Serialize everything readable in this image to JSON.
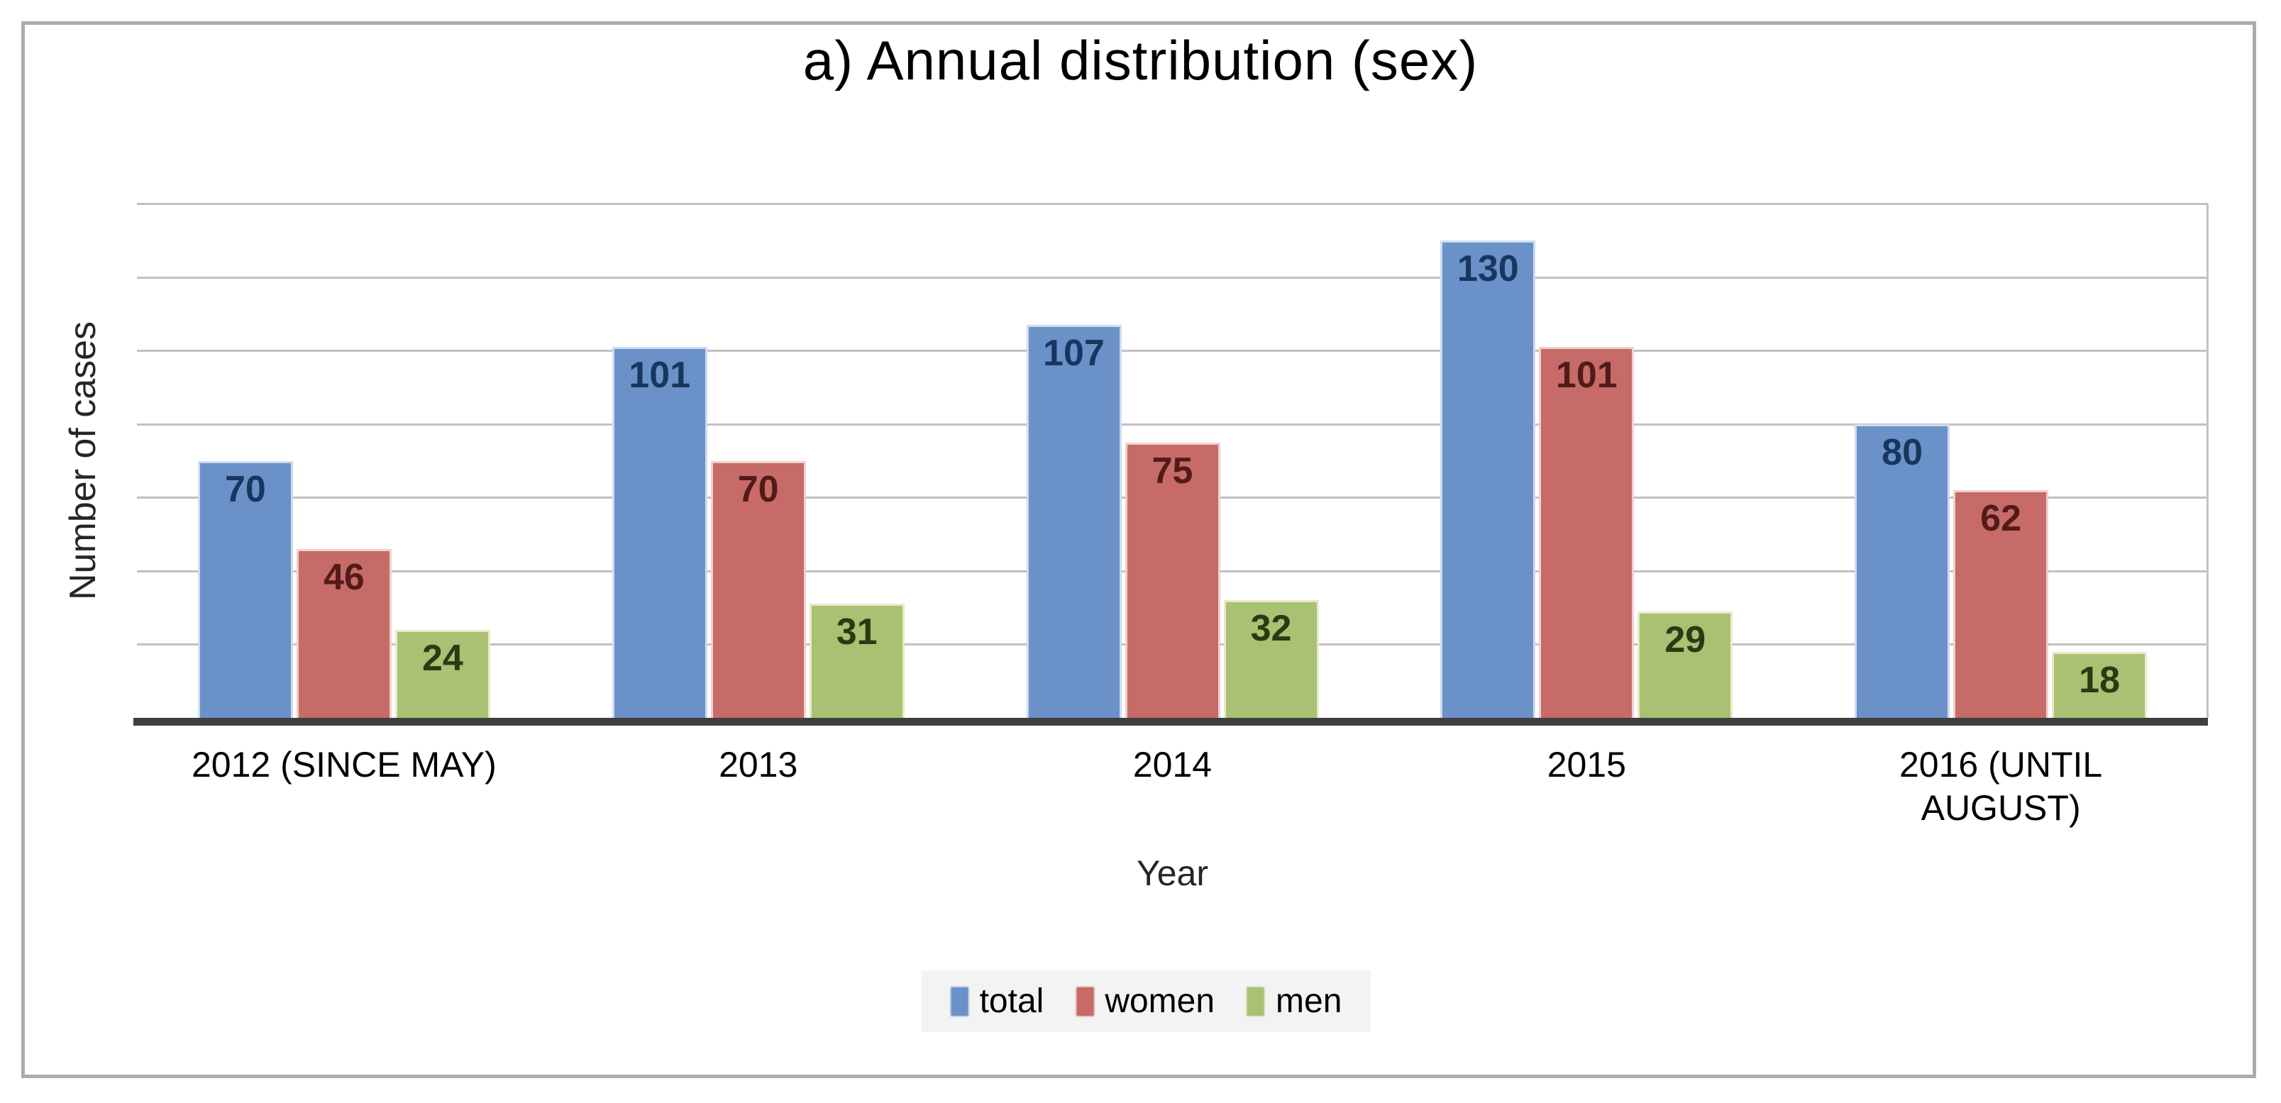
{
  "frame": {
    "border_color": "#ACACAC",
    "background_color": "#FFFFFF"
  },
  "chart_data": {
    "type": "bar",
    "title": "a) Annual distribution (sex)",
    "xlabel": "Year",
    "ylabel": "Number of cases",
    "categories": [
      "2012 (SINCE MAY)",
      "2013",
      "2014",
      "2015",
      "2016 (UNTIL AUGUST)"
    ],
    "series": [
      {
        "name": "total",
        "color": "#6B91C9",
        "edge_color": "#CDDCF0",
        "label_color": "#17375E",
        "values": [
          70,
          101,
          107,
          130,
          80
        ]
      },
      {
        "name": "women",
        "color": "#C66B67",
        "edge_color": "#F1D0CE",
        "label_color": "#521B19",
        "values": [
          46,
          70,
          75,
          101,
          62
        ]
      },
      {
        "name": "men",
        "color": "#A8C173",
        "edge_color": "#EDE8C9",
        "label_color": "#2B3A12",
        "values": [
          24,
          31,
          32,
          29,
          18
        ]
      }
    ],
    "ylim": [
      0,
      140
    ],
    "gridline_step": 20,
    "grid": "on",
    "y_tick_labels_visible": false,
    "data_labels_position": "inside-end",
    "legend_position": "bottom",
    "legend_entries": [
      "total",
      "women",
      "men"
    ],
    "gridline_color": "#C1C1C1",
    "axis_line_color": "#3F3F3F"
  }
}
